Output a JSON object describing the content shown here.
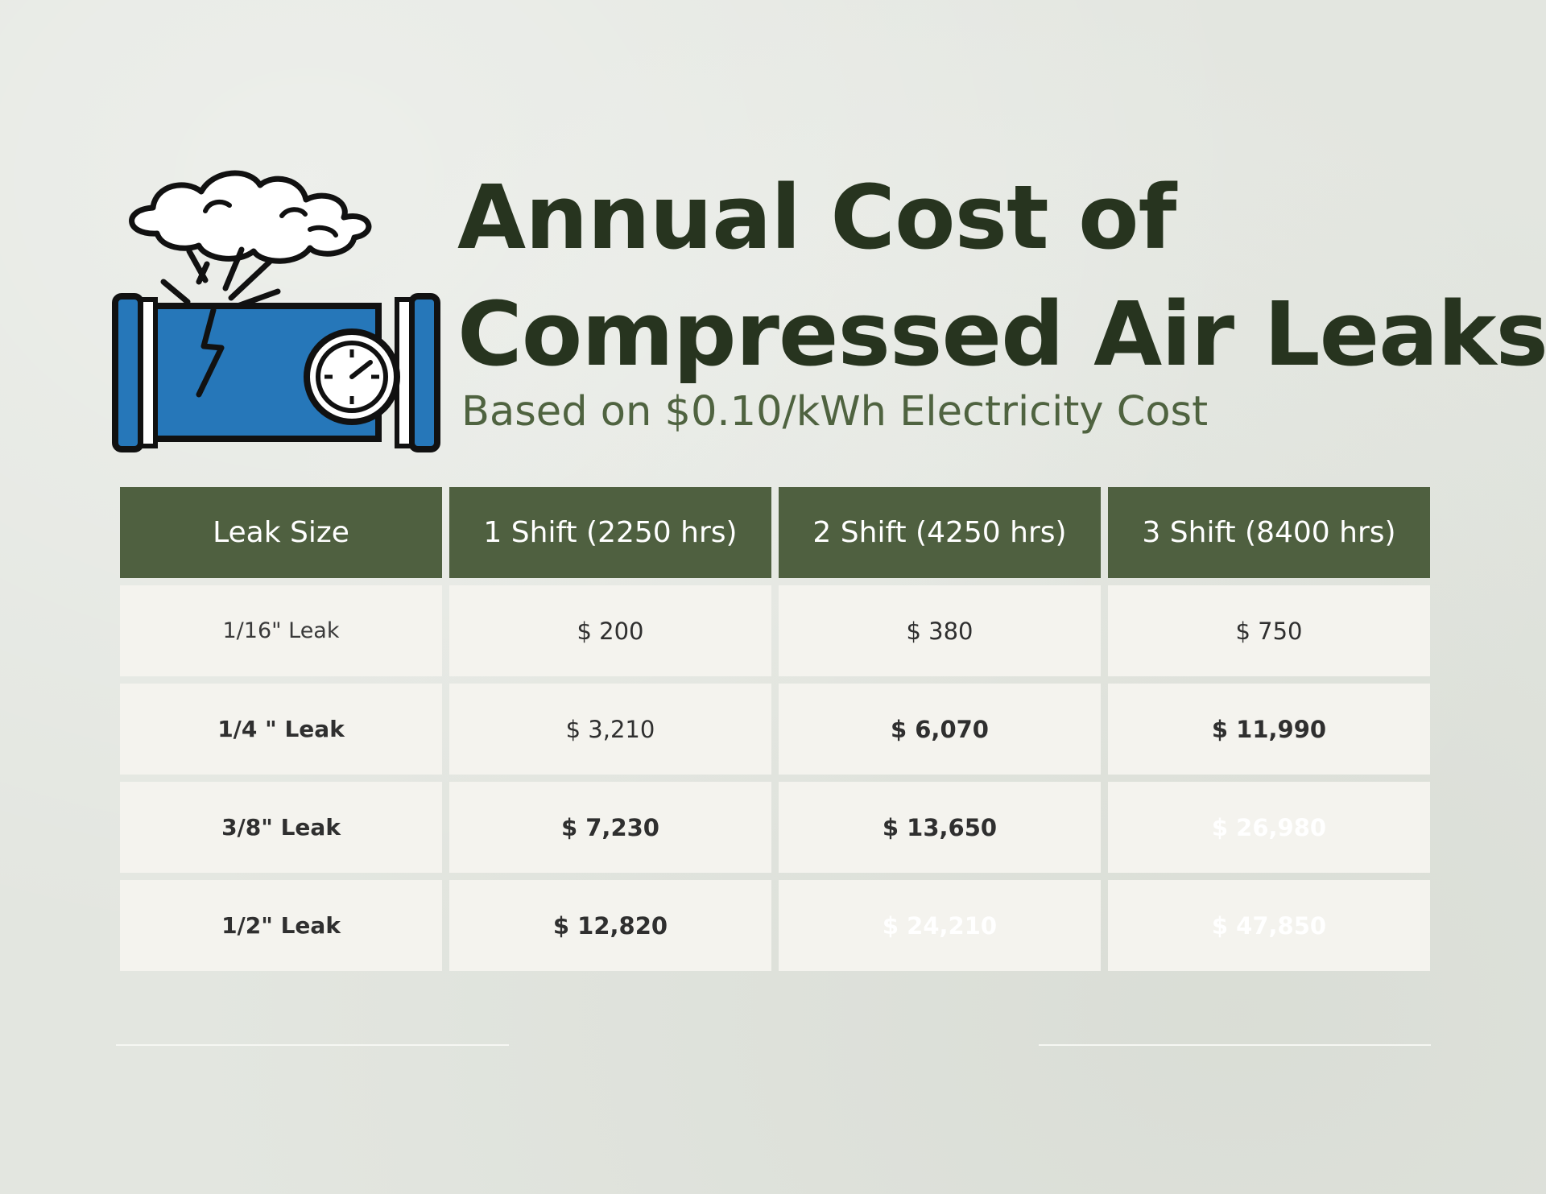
{
  "header": {
    "title_line1": "Annual Cost of",
    "title_line2": "Compressed Air Leaks",
    "subtitle": "Based on $0.10/kWh Electricity Cost"
  },
  "illustration": {
    "icon": "leaking-pipe-with-gauge",
    "colors": {
      "pipe": "#2677b9",
      "cloud": "#ffffff",
      "outline": "#111111"
    }
  },
  "colors": {
    "header_bg": "#4f6040",
    "title": "#27341f",
    "subtitle": "#4f6340",
    "level_none": "#f4f3ee",
    "level_low": "#fbd452",
    "level_mid": "#fbaa44",
    "level_high": "#ab0a0a"
  },
  "table": {
    "headers": [
      "Leak Size",
      "1 Shift (2250 hrs)",
      "2 Shift (4250 hrs)",
      "3 Shift (8400 hrs)"
    ],
    "rows": [
      {
        "label": "1/16\" Leak",
        "cells": [
          "$ 200",
          "$ 380",
          "$ 750"
        ]
      },
      {
        "label": "1/4 \" Leak",
        "cells": [
          "$ 3,210",
          "$ 6,070",
          "$ 11,990"
        ]
      },
      {
        "label": "3/8\" Leak",
        "cells": [
          "$ 7,230",
          "$ 13,650",
          "$ 26,980"
        ]
      },
      {
        "label": "1/2\" Leak",
        "cells": [
          "$ 12,820",
          "$ 24,210",
          "$ 47,850"
        ]
      }
    ]
  }
}
